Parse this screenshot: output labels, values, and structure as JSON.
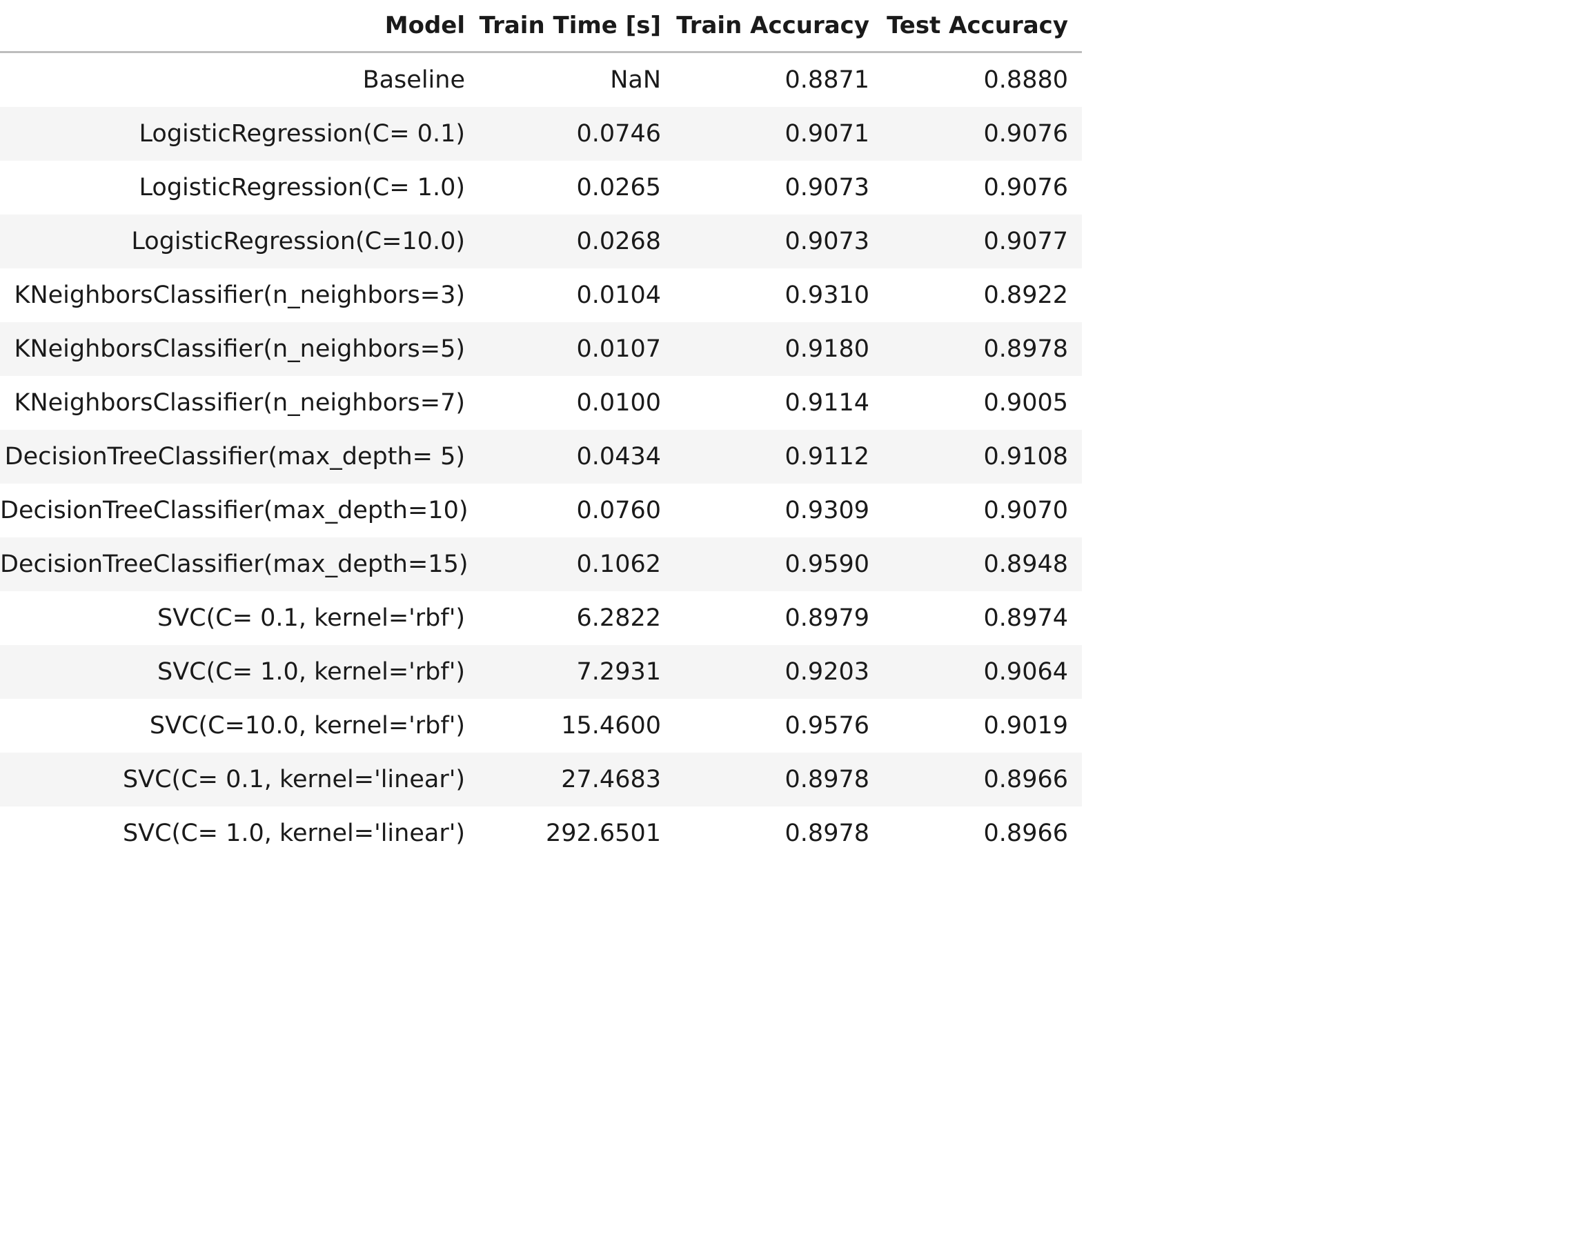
{
  "table": {
    "columns": [
      "Model",
      "Train Time [s]",
      "Train Accuracy",
      "Test Accuracy"
    ],
    "rows": [
      [
        "Baseline",
        "NaN",
        "0.8871",
        "0.8880"
      ],
      [
        "LogisticRegression(C= 0.1)",
        "0.0746",
        "0.9071",
        "0.9076"
      ],
      [
        "LogisticRegression(C= 1.0)",
        "0.0265",
        "0.9073",
        "0.9076"
      ],
      [
        "LogisticRegression(C=10.0)",
        "0.0268",
        "0.9073",
        "0.9077"
      ],
      [
        "KNeighborsClassifier(n_neighbors=3)",
        "0.0104",
        "0.9310",
        "0.8922"
      ],
      [
        "KNeighborsClassifier(n_neighbors=5)",
        "0.0107",
        "0.9180",
        "0.8978"
      ],
      [
        "KNeighborsClassifier(n_neighbors=7)",
        "0.0100",
        "0.9114",
        "0.9005"
      ],
      [
        "DecisionTreeClassifier(max_depth= 5)",
        "0.0434",
        "0.9112",
        "0.9108"
      ],
      [
        "DecisionTreeClassifier(max_depth=10)",
        "0.0760",
        "0.9309",
        "0.9070"
      ],
      [
        "DecisionTreeClassifier(max_depth=15)",
        "0.1062",
        "0.9590",
        "0.8948"
      ],
      [
        "SVC(C= 0.1, kernel='rbf')",
        "6.2822",
        "0.8979",
        "0.8974"
      ],
      [
        "SVC(C= 1.0, kernel='rbf')",
        "7.2931",
        "0.9203",
        "0.9064"
      ],
      [
        "SVC(C=10.0, kernel='rbf')",
        "15.4600",
        "0.9576",
        "0.9019"
      ],
      [
        "SVC(C= 0.1, kernel='linear')",
        "27.4683",
        "0.8978",
        "0.8966"
      ],
      [
        "SVC(C= 1.0, kernel='linear')",
        "292.6501",
        "0.8978",
        "0.8966"
      ]
    ]
  },
  "colors": {
    "header_rule": "#bdbdbd",
    "row_stripe": "#f5f5f5",
    "text": "#1a1a1a"
  }
}
